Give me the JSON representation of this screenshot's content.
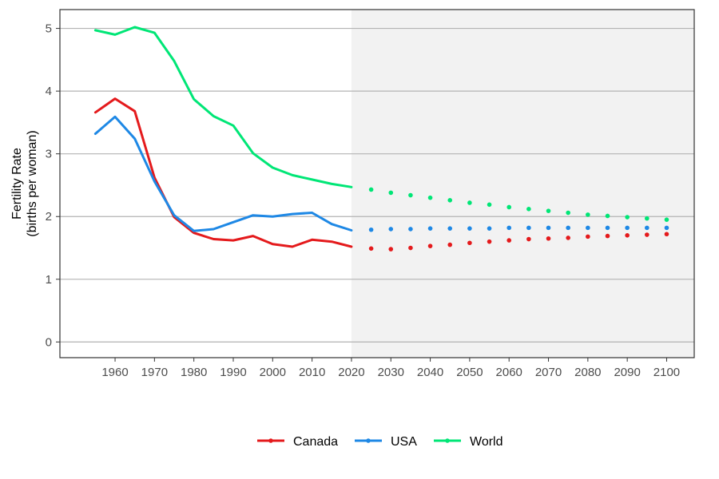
{
  "chart_data": {
    "type": "line",
    "ylabel": [
      "Fertility Rate",
      "(births per woman)"
    ],
    "xlabel": "",
    "ylim": [
      -0.25,
      5.3
    ],
    "xlim": [
      1946,
      2107
    ],
    "yticks": [
      0,
      1,
      2,
      3,
      4,
      5
    ],
    "xticks": [
      1960,
      1970,
      1980,
      1990,
      2000,
      2010,
      2020,
      2030,
      2040,
      2050,
      2060,
      2070,
      2080,
      2090,
      2100
    ],
    "projection_start": 2020,
    "grid": "horizontal",
    "legend_position": "bottom",
    "series": [
      {
        "name": "Canada",
        "color": "#e41a1c",
        "historical": {
          "x": [
            1955,
            1960,
            1965,
            1970,
            1975,
            1980,
            1985,
            1990,
            1995,
            2000,
            2005,
            2010,
            2015,
            2020
          ],
          "y": [
            3.66,
            3.88,
            3.68,
            2.62,
            1.99,
            1.74,
            1.64,
            1.62,
            1.69,
            1.56,
            1.52,
            1.63,
            1.6,
            1.52
          ]
        },
        "projected": {
          "x": [
            2025,
            2030,
            2035,
            2040,
            2045,
            2050,
            2055,
            2060,
            2065,
            2070,
            2075,
            2080,
            2085,
            2090,
            2095,
            2100
          ],
          "y": [
            1.49,
            1.48,
            1.5,
            1.53,
            1.55,
            1.58,
            1.6,
            1.62,
            1.64,
            1.65,
            1.66,
            1.68,
            1.69,
            1.7,
            1.71,
            1.72
          ]
        }
      },
      {
        "name": "USA",
        "color": "#1e88e5",
        "historical": {
          "x": [
            1955,
            1960,
            1965,
            1970,
            1975,
            1980,
            1985,
            1990,
            1995,
            2000,
            2005,
            2010,
            2015,
            2020
          ],
          "y": [
            3.32,
            3.59,
            3.24,
            2.56,
            2.02,
            1.77,
            1.8,
            1.91,
            2.02,
            2.0,
            2.04,
            2.06,
            1.88,
            1.78
          ]
        },
        "projected": {
          "x": [
            2025,
            2030,
            2035,
            2040,
            2045,
            2050,
            2055,
            2060,
            2065,
            2070,
            2075,
            2080,
            2085,
            2090,
            2095,
            2100
          ],
          "y": [
            1.79,
            1.8,
            1.8,
            1.81,
            1.81,
            1.81,
            1.81,
            1.82,
            1.82,
            1.82,
            1.82,
            1.82,
            1.82,
            1.82,
            1.82,
            1.82
          ]
        }
      },
      {
        "name": "World",
        "color": "#00e676",
        "historical": {
          "x": [
            1955,
            1960,
            1965,
            1970,
            1975,
            1980,
            1985,
            1990,
            1995,
            2000,
            2005,
            2010,
            2015,
            2020
          ],
          "y": [
            4.97,
            4.9,
            5.02,
            4.93,
            4.48,
            3.87,
            3.6,
            3.45,
            3.01,
            2.78,
            2.66,
            2.59,
            2.52,
            2.47
          ]
        },
        "projected": {
          "x": [
            2025,
            2030,
            2035,
            2040,
            2045,
            2050,
            2055,
            2060,
            2065,
            2070,
            2075,
            2080,
            2085,
            2090,
            2095,
            2100
          ],
          "y": [
            2.43,
            2.38,
            2.34,
            2.3,
            2.26,
            2.22,
            2.19,
            2.15,
            2.12,
            2.09,
            2.06,
            2.03,
            2.01,
            1.99,
            1.97,
            1.95
          ]
        }
      }
    ]
  }
}
